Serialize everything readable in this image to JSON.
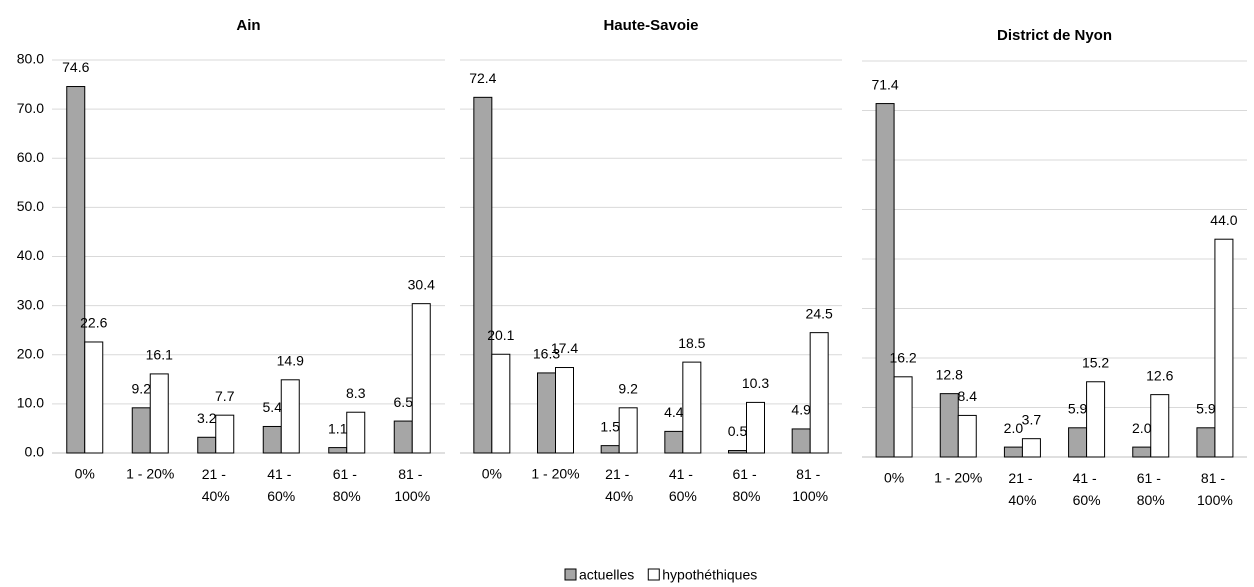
{
  "chart_data": [
    {
      "type": "bar",
      "title": "Ain",
      "categories": [
        "0%",
        "1 - 20%",
        "21 - 40%",
        "41 - 60%",
        "61 - 80%",
        "81 - 100%"
      ],
      "series": [
        {
          "name": "actuelles",
          "color": "#a6a6a6",
          "values": [
            74.6,
            9.2,
            3.2,
            5.4,
            1.1,
            6.5
          ],
          "value_labels": [
            "74.6",
            "9.2",
            "3.2",
            "5.4",
            "1.1",
            "6.5"
          ]
        },
        {
          "name": "hypothéthiques",
          "color": "#ffffff",
          "values": [
            22.6,
            16.1,
            7.7,
            14.9,
            8.3,
            30.4
          ],
          "value_labels": [
            "22.6",
            "16.1",
            "7.7",
            "14.9",
            "8.3",
            "30.4"
          ]
        }
      ],
      "ylim": [
        0,
        80
      ],
      "yticks": [
        {
          "value": 0,
          "label": "0.0"
        },
        {
          "value": 10,
          "label": "10.0"
        },
        {
          "value": 20,
          "label": "20.0"
        },
        {
          "value": 30,
          "label": "30.0"
        },
        {
          "value": 40,
          "label": "40.0"
        },
        {
          "value": 50,
          "label": "50.0"
        },
        {
          "value": 60,
          "label": "60.0"
        },
        {
          "value": 70,
          "label": "70.0"
        },
        {
          "value": 80,
          "label": "80.0"
        }
      ],
      "grid": true
    },
    {
      "type": "bar",
      "title": "Haute-Savoie",
      "categories": [
        "0%",
        "1 - 20%",
        "21 - 40%",
        "41 - 60%",
        "61 - 80%",
        "81 - 100%"
      ],
      "series": [
        {
          "name": "actuelles",
          "color": "#a6a6a6",
          "values": [
            72.4,
            16.3,
            1.5,
            4.4,
            0.5,
            4.9
          ],
          "value_labels": [
            "72.4",
            "16.3",
            "1.5",
            "4.4",
            "0.5",
            "4.9"
          ]
        },
        {
          "name": "hypothéthiques",
          "color": "#ffffff",
          "values": [
            20.1,
            17.4,
            9.2,
            18.5,
            10.3,
            24.5
          ],
          "value_labels": [
            "20.1",
            "17.4",
            "9.2",
            "18.5",
            "10.3",
            "24.5"
          ]
        }
      ],
      "ylim": [
        0,
        80
      ],
      "yticks": [
        0,
        10,
        20,
        30,
        40,
        50,
        60,
        70,
        80
      ],
      "ytick_labels": false,
      "grid": true
    },
    {
      "type": "bar",
      "title": "District  de Nyon",
      "categories": [
        "0%",
        "1 - 20%",
        "21 - 40%",
        "41 - 60%",
        "61 - 80%",
        "81 - 100%"
      ],
      "series": [
        {
          "name": "actuelles",
          "color": "#a6a6a6",
          "values": [
            71.4,
            12.8,
            2.0,
            5.9,
            2.0,
            5.9
          ],
          "value_labels": [
            "71.4",
            "12.8",
            "2.0",
            "5.9",
            "2.0",
            "5.9"
          ]
        },
        {
          "name": "hypothéthiques",
          "color": "#ffffff",
          "values": [
            16.2,
            8.4,
            3.7,
            15.2,
            12.6,
            44.0
          ],
          "value_labels": [
            "16.2",
            "8.4",
            "3.7",
            "15.2",
            "12.6",
            "44.0"
          ]
        }
      ],
      "ylim": [
        0,
        80
      ],
      "yticks": [
        0,
        10,
        20,
        30,
        40,
        50,
        60,
        70,
        80
      ],
      "ytick_labels": false,
      "grid": true
    }
  ]
}
